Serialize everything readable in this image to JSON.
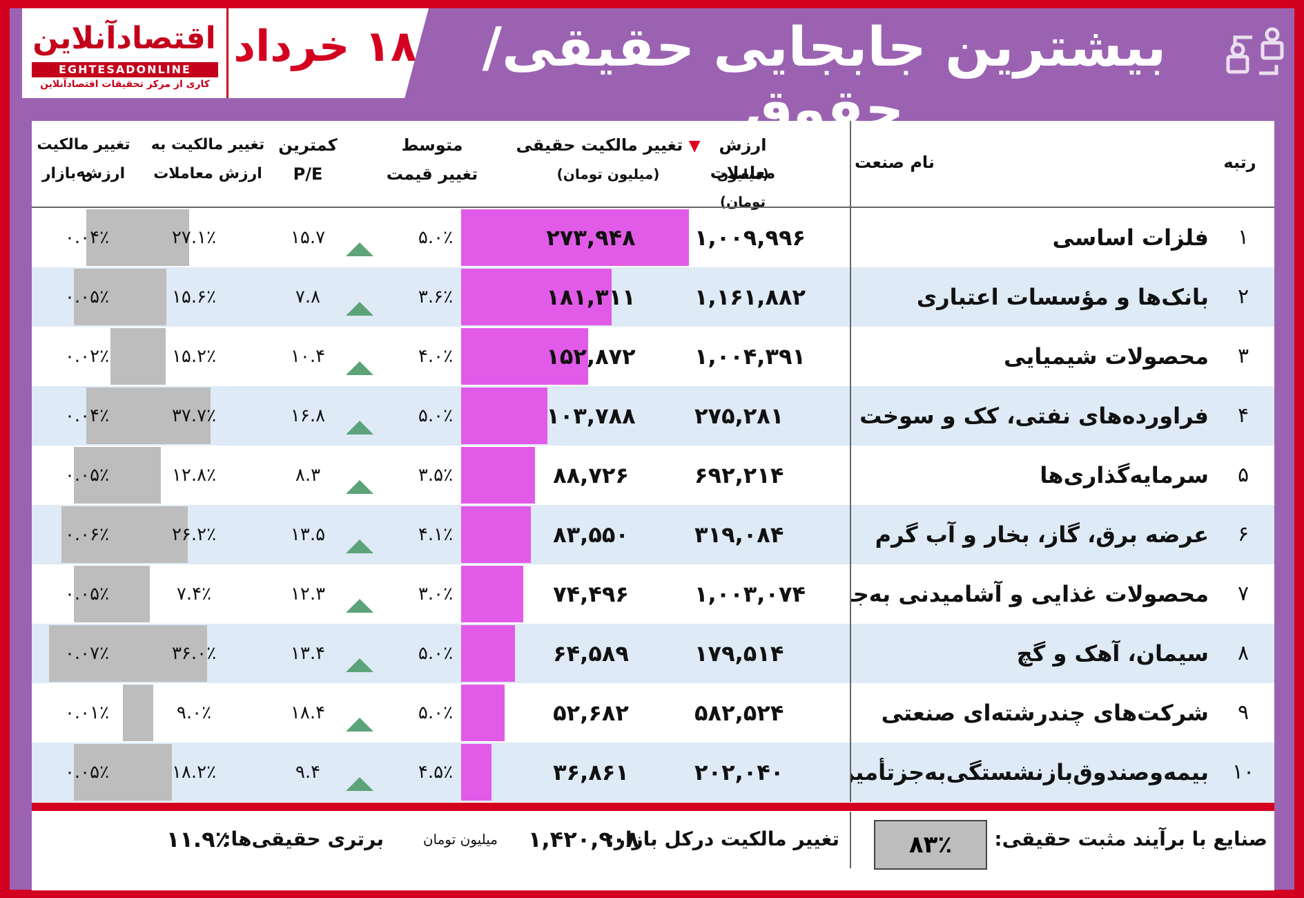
{
  "brand": {
    "logo_text": "اقتصادآنلاین",
    "logo_en": "EGHTESADONLINE",
    "logo_sub": "کاری از مرکز تحقیقات اقتصادآنلاین",
    "accent": "#d4001f",
    "bg": "#9b62b2"
  },
  "header": {
    "date": "۱۸ خرداد",
    "title": "بیشترین جابجایی حقیقی/حقوق"
  },
  "columns": {
    "rank": "رتبه",
    "name": "نام صنعت",
    "trade_value_1": "ارزش معاملات",
    "trade_value_2": "(میلیون تومان)",
    "real_change_1": "تغییر مالکیت حقیقی",
    "real_change_2": "(میلیون تومان)",
    "avg_price_1": "متوسط",
    "avg_price_2": "تغییر قیمت",
    "pe_1": "کمترین",
    "pe_2": "P/E",
    "own_trade_1": "تغییر مالکیت به",
    "own_trade_2": "ارزش معاملات",
    "own_market_1": "تغییر مالکیت به",
    "own_market_2": "ارزش بازار"
  },
  "rows": [
    {
      "rank": "۱",
      "name": "فلزات اساسی",
      "trade_value": "۱,۰۰۹,۹۹۶",
      "real_change": "۲۷۳,۹۴۸",
      "real_change_val": 273948,
      "price_change": "۵.۰٪",
      "pe": "۱۵.۷",
      "own_trade": "۲۷.۱٪",
      "own_trade_val": 27.1,
      "own_market": "۰.۰۴٪",
      "own_market_val": 0.04
    },
    {
      "rank": "۲",
      "name": "بانک‌ها و مؤسسات اعتباری",
      "trade_value": "۱,۱۶۱,۸۸۲",
      "real_change": "۱۸۱,۳۱۱",
      "real_change_val": 181311,
      "price_change": "۳.۶٪",
      "pe": "۷.۸",
      "own_trade": "۱۵.۶٪",
      "own_trade_val": 15.6,
      "own_market": "۰.۰۵٪",
      "own_market_val": 0.05
    },
    {
      "rank": "۳",
      "name": "محصولات شیمیایی",
      "trade_value": "۱,۰۰۴,۳۹۱",
      "real_change": "۱۵۲,۸۷۲",
      "real_change_val": 152872,
      "price_change": "۴.۰٪",
      "pe": "۱۰.۴",
      "own_trade": "۱۵.۲٪",
      "own_trade_val": 15.2,
      "own_market": "۰.۰۲٪",
      "own_market_val": 0.02
    },
    {
      "rank": "۴",
      "name": "فراورده‌های نفتی، کک و سوخت هسته‌ای",
      "trade_value": "۲۷۵,۲۸۱",
      "real_change": "۱۰۳,۷۸۸",
      "real_change_val": 103788,
      "price_change": "۵.۰٪",
      "pe": "۱۶.۸",
      "own_trade": "۳۷.۷٪",
      "own_trade_val": 37.7,
      "own_market": "۰.۰۴٪",
      "own_market_val": 0.04
    },
    {
      "rank": "۵",
      "name": "سرمایه‌گذاری‌ها",
      "trade_value": "۶۹۲,۲۱۴",
      "real_change": "۸۸,۷۲۶",
      "real_change_val": 88726,
      "price_change": "۳.۵٪",
      "pe": "۸.۳",
      "own_trade": "۱۲.۸٪",
      "own_trade_val": 12.8,
      "own_market": "۰.۰۵٪",
      "own_market_val": 0.05
    },
    {
      "rank": "۶",
      "name": "عرضه برق، گاز، بخار و آب گرم",
      "trade_value": "۳۱۹,۰۸۴",
      "real_change": "۸۳,۵۵۰",
      "real_change_val": 83550,
      "price_change": "۴.۱٪",
      "pe": "۱۳.۵",
      "own_trade": "۲۶.۲٪",
      "own_trade_val": 26.2,
      "own_market": "۰.۰۶٪",
      "own_market_val": 0.06
    },
    {
      "rank": "۷",
      "name": "محصولات غذایی و آشامیدنی به‌جز قند و شکر",
      "trade_value": "۱,۰۰۳,۰۷۴",
      "real_change": "۷۴,۴۹۶",
      "real_change_val": 74496,
      "price_change": "۳.۰٪",
      "pe": "۱۲.۳",
      "own_trade": "۷.۴٪",
      "own_trade_val": 7.4,
      "own_market": "۰.۰۵٪",
      "own_market_val": 0.05
    },
    {
      "rank": "۸",
      "name": "سیمان، آهک و گچ",
      "trade_value": "۱۷۹,۵۱۴",
      "real_change": "۶۴,۵۸۹",
      "real_change_val": 64589,
      "price_change": "۵.۰٪",
      "pe": "۱۳.۴",
      "own_trade": "۳۶.۰٪",
      "own_trade_val": 36.0,
      "own_market": "۰.۰۷٪",
      "own_market_val": 0.07
    },
    {
      "rank": "۹",
      "name": "شرکت‌های چندرشته‌ای صنعتی",
      "trade_value": "۵۸۲,۵۲۴",
      "real_change": "۵۲,۶۸۲",
      "real_change_val": 52682,
      "price_change": "۵.۰٪",
      "pe": "۱۸.۴",
      "own_trade": "۹.۰٪",
      "own_trade_val": 9.0,
      "own_market": "۰.۰۱٪",
      "own_market_val": 0.01
    },
    {
      "rank": "۱۰",
      "name": "بیمه‌وصندوق‌بازنشستگی‌به‌جزتأمین‌اجتماعی",
      "trade_value": "۲۰۲,۰۴۰",
      "real_change": "۳۶,۸۶۱",
      "real_change_val": 36861,
      "price_change": "۴.۵٪",
      "pe": "۹.۴",
      "own_trade": "۱۸.۲٪",
      "own_trade_val": 18.2,
      "own_market": "۰.۰۵٪",
      "own_market_val": 0.05
    }
  ],
  "footer": {
    "positive_label": "صنایع با برآیند مثبت حقیقی:",
    "positive_value": "۸۳٪",
    "total_label": "تغییر مالکیت درکل بازار:",
    "total_value": "۱,۴۲۰,۹۰۸",
    "total_unit": "میلیون تومان",
    "superiority_label": "برتری حقیقی‌ها:",
    "superiority_value": "۱۱.۹٪"
  }
}
